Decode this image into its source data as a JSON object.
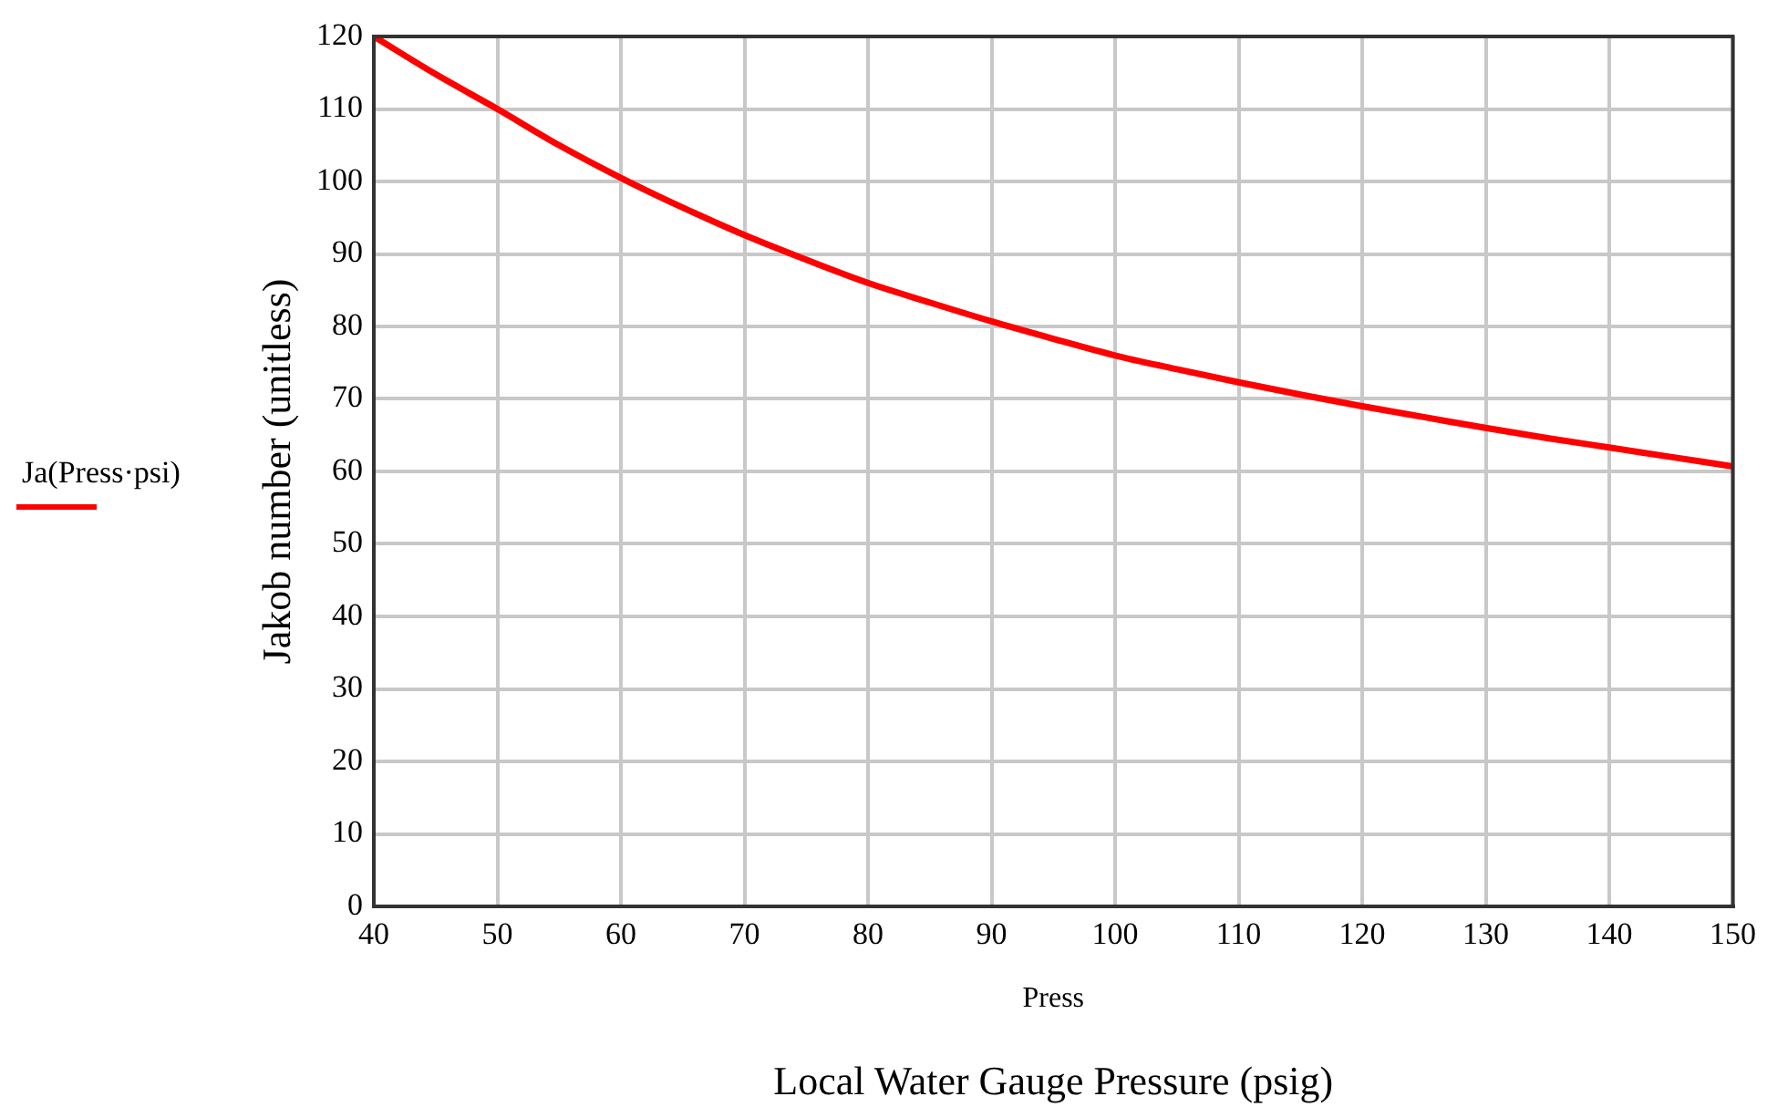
{
  "chart_data": {
    "type": "line",
    "xlabel": "Press",
    "ylabel": "Jakob number (unitless)",
    "annotations": [
      "Local Water Gauge Pressure (psig)"
    ],
    "x": [
      40,
      45,
      50,
      55,
      60,
      65,
      70,
      75,
      80,
      85,
      90,
      95,
      100,
      105,
      110,
      115,
      120,
      125,
      130,
      135,
      140,
      145,
      150
    ],
    "series": [
      {
        "name": "Ja(Press·psi)",
        "color": "#ff0000",
        "values": [
          120,
          114.8,
          110,
          105,
          100.5,
          96.4,
          92.6,
          89.2,
          86,
          83.3,
          80.7,
          78.3,
          76,
          74.1,
          72.3,
          70.6,
          69,
          67.5,
          66,
          64.6,
          63.3,
          62,
          60.7
        ]
      }
    ],
    "xlim": [
      40,
      150
    ],
    "xticks": [
      40,
      50,
      60,
      70,
      80,
      90,
      100,
      110,
      120,
      130,
      140,
      150
    ],
    "ylim": [
      0,
      120
    ],
    "yticks": [
      0,
      10,
      20,
      30,
      40,
      50,
      60,
      70,
      80,
      90,
      100,
      110,
      120
    ],
    "grid": true,
    "legend": "left",
    "marker": "none",
    "line_style": "solid"
  }
}
